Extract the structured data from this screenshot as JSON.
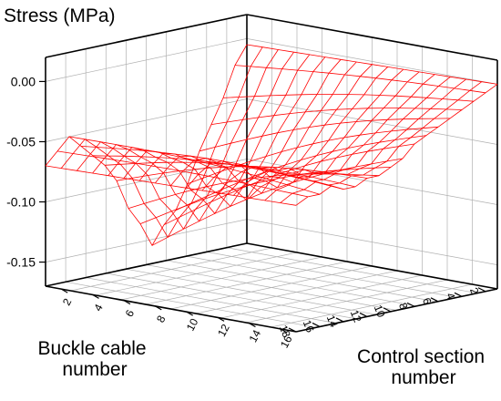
{
  "chart_data": {
    "type": "surface",
    "zlabel": "Stress (MPa)",
    "xlabel": "Buckle cable number",
    "ylabel": "Control section number",
    "zlim": [
      -0.17,
      0.02
    ],
    "ztick_labels": [
      "0.00",
      "-0.05",
      "-0.10",
      "-0.15"
    ],
    "xtick_labels": [
      "2",
      "4",
      "6",
      "8",
      "10",
      "12",
      "14",
      "16",
      "18"
    ],
    "ytick_labels": [
      "2",
      "4",
      "6",
      "8",
      "10",
      "12",
      "14",
      "16"
    ],
    "grid": true,
    "mesh_color": "#ff0000",
    "series": [
      {
        "buckle_cable": [
          1,
          2,
          3,
          4,
          5,
          6,
          7,
          8,
          9,
          10,
          11,
          12,
          13,
          14,
          15,
          16,
          17,
          18
        ],
        "control_section": [
          1,
          2,
          3,
          4,
          5,
          6,
          7,
          8,
          9,
          10,
          11,
          12,
          13,
          14,
          15,
          16,
          17
        ],
        "stress_edge_section_1": [
          -0.005,
          -0.02,
          -0.045,
          -0.065,
          -0.085,
          -0.11,
          -0.13,
          -0.14,
          -0.155,
          -0.135,
          -0.12,
          -0.095,
          -0.08,
          -0.07,
          -0.06,
          -0.05,
          -0.06,
          -0.07
        ],
        "stress_edge_section_17": [
          0.0,
          -0.005,
          -0.01,
          -0.015,
          -0.02,
          -0.025,
          -0.03,
          -0.035,
          -0.045,
          -0.05,
          -0.055,
          -0.055,
          -0.06,
          -0.06,
          -0.055,
          -0.06,
          -0.06,
          -0.065
        ]
      }
    ]
  }
}
